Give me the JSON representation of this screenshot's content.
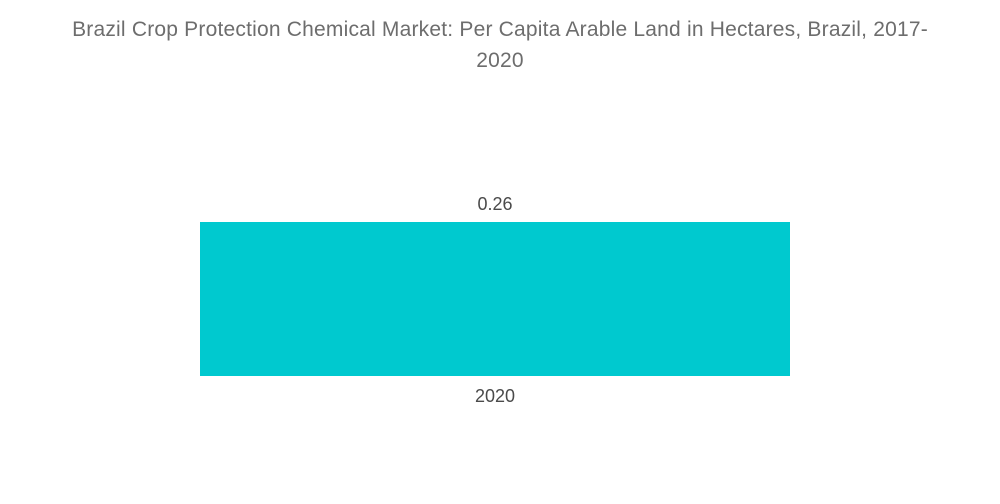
{
  "chart_data": {
    "type": "bar",
    "title": "Brazil Crop Protection Chemical Market: Per Capita Arable Land in Hectares, Brazil, 2017-2020",
    "categories": [
      "2020"
    ],
    "values": [
      0.26
    ],
    "value_labels": [
      "0.26"
    ],
    "series": [
      {
        "name": "Per Capita Arable Land in Hectares",
        "values": [
          0.26
        ]
      }
    ],
    "xlabel": "",
    "ylabel": "",
    "ylim": [
      0,
      0.26
    ],
    "grid": false,
    "legend_position": "none",
    "axes_visible": false,
    "orientation": "vertical",
    "colors": {
      "bar": "#00C9CF",
      "title_text": "#6d6d6d",
      "label_text": "#4a4a4a",
      "background": "#ffffff"
    }
  }
}
